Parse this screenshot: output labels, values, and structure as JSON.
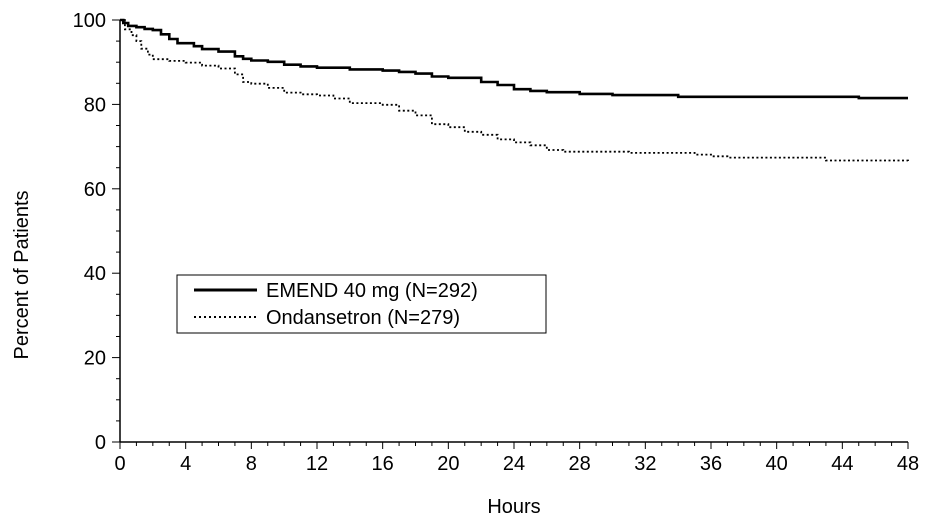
{
  "chart_data": {
    "type": "line",
    "title": "",
    "xlabel": "Hours",
    "ylabel": "Percent of Patients",
    "xlim": [
      0,
      48
    ],
    "ylim": [
      0,
      100
    ],
    "x_ticks": [
      0,
      4,
      8,
      12,
      16,
      20,
      24,
      28,
      32,
      36,
      40,
      44,
      48
    ],
    "y_ticks": [
      0,
      20,
      40,
      60,
      80,
      100
    ],
    "grid": false,
    "legend_position": "center-left",
    "series": [
      {
        "name": "EMEND 40 mg (N=292)",
        "line_style": "solid",
        "color": "#000000",
        "points": [
          [
            0,
            100
          ],
          [
            0.2,
            99.3
          ],
          [
            0.5,
            98.6
          ],
          [
            1,
            98.3
          ],
          [
            1.5,
            97.9
          ],
          [
            2,
            97.6
          ],
          [
            2.5,
            96.6
          ],
          [
            3,
            95.5
          ],
          [
            3.5,
            94.5
          ],
          [
            4.5,
            93.8
          ],
          [
            5,
            93.1
          ],
          [
            6,
            92.5
          ],
          [
            7,
            91.4
          ],
          [
            7.5,
            90.8
          ],
          [
            8,
            90.4
          ],
          [
            9,
            90.1
          ],
          [
            10,
            89.4
          ],
          [
            11,
            89.0
          ],
          [
            12,
            88.7
          ],
          [
            13,
            88.7
          ],
          [
            14,
            88.3
          ],
          [
            16,
            88.0
          ],
          [
            17,
            87.7
          ],
          [
            18,
            87.3
          ],
          [
            19,
            86.6
          ],
          [
            20,
            86.3
          ],
          [
            21,
            86.3
          ],
          [
            22,
            85.3
          ],
          [
            23,
            84.6
          ],
          [
            24,
            83.6
          ],
          [
            25,
            83.2
          ],
          [
            26,
            82.9
          ],
          [
            27,
            82.9
          ],
          [
            28,
            82.5
          ],
          [
            29,
            82.5
          ],
          [
            30,
            82.2
          ],
          [
            33,
            82.2
          ],
          [
            34,
            81.8
          ],
          [
            36,
            81.8
          ],
          [
            44,
            81.8
          ],
          [
            45,
            81.5
          ],
          [
            48,
            81.5
          ]
        ]
      },
      {
        "name": "Ondansetron (N=279)",
        "line_style": "dotted",
        "color": "#000000",
        "points": [
          [
            0,
            100
          ],
          [
            0.3,
            97.8
          ],
          [
            0.7,
            96.4
          ],
          [
            1,
            95.0
          ],
          [
            1.3,
            93.2
          ],
          [
            1.7,
            91.8
          ],
          [
            2,
            90.7
          ],
          [
            3,
            90.3
          ],
          [
            4,
            89.9
          ],
          [
            5,
            89.2
          ],
          [
            6,
            88.5
          ],
          [
            7,
            87.1
          ],
          [
            7.5,
            85.3
          ],
          [
            8,
            84.9
          ],
          [
            9,
            83.9
          ],
          [
            10,
            82.8
          ],
          [
            11,
            82.4
          ],
          [
            12,
            82.1
          ],
          [
            13,
            81.4
          ],
          [
            14,
            80.3
          ],
          [
            16,
            79.9
          ],
          [
            17,
            78.5
          ],
          [
            18,
            77.4
          ],
          [
            19,
            75.3
          ],
          [
            20,
            74.6
          ],
          [
            21,
            73.5
          ],
          [
            22,
            72.8
          ],
          [
            23,
            71.7
          ],
          [
            24,
            71.0
          ],
          [
            25,
            70.3
          ],
          [
            26,
            69.2
          ],
          [
            27,
            68.8
          ],
          [
            30,
            68.8
          ],
          [
            31,
            68.5
          ],
          [
            34,
            68.5
          ],
          [
            35,
            68.1
          ],
          [
            36,
            67.7
          ],
          [
            37,
            67.4
          ],
          [
            42,
            67.4
          ],
          [
            43,
            66.7
          ],
          [
            47,
            66.7
          ],
          [
            48,
            66.3
          ]
        ]
      }
    ]
  }
}
